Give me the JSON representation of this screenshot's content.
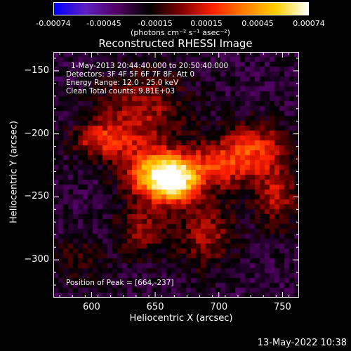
{
  "colorbar": {
    "ticks": [
      "-0.00074",
      "-0.00045",
      "-0.00015",
      "0.00015",
      "0.00045",
      "0.00074"
    ],
    "unit": "(photons cm⁻² s⁻¹ asec⁻²)"
  },
  "chart_data": {
    "type": "heatmap",
    "title": "Reconstructed RHESSI Image",
    "xlabel": "Heliocentric X (arcsec)",
    "ylabel": "Heliocentric Y (arcsec)",
    "xlim": [
      570,
      763
    ],
    "ylim": [
      -330,
      -135
    ],
    "xticks": [
      600,
      650,
      700,
      750
    ],
    "yticks": [
      -150,
      -200,
      -250,
      -300
    ],
    "xtick_labels": [
      "600",
      "650",
      "700",
      "750"
    ],
    "ytick_labels": [
      "−150",
      "−200",
      "−250",
      "−300"
    ],
    "color_range": [
      -0.00074,
      0.00074
    ],
    "peak": [
      664,
      -237
    ],
    "sources": [
      {
        "x": 664,
        "y": -237,
        "amp": 1.0,
        "sx": 14,
        "sy": 12
      },
      {
        "x": 645,
        "y": -230,
        "amp": 0.55,
        "sx": 16,
        "sy": 14
      },
      {
        "x": 610,
        "y": -205,
        "amp": 0.45,
        "sx": 18,
        "sy": 10
      },
      {
        "x": 700,
        "y": -225,
        "amp": 0.45,
        "sx": 22,
        "sy": 14
      },
      {
        "x": 640,
        "y": -180,
        "amp": 0.35,
        "sx": 25,
        "sy": 20
      },
      {
        "x": 730,
        "y": -210,
        "amp": 0.4,
        "sx": 18,
        "sy": 14
      },
      {
        "x": 690,
        "y": -280,
        "amp": 0.35,
        "sx": 16,
        "sy": 18
      },
      {
        "x": 745,
        "y": -250,
        "amp": 0.35,
        "sx": 12,
        "sy": 18
      },
      {
        "x": 640,
        "y": -275,
        "amp": 0.3,
        "sx": 14,
        "sy": 16
      },
      {
        "x": 590,
        "y": -300,
        "amp": 0.2,
        "sx": 14,
        "sy": 12
      }
    ],
    "colors": [
      "#0000ff",
      "#6020c0",
      "#500060",
      "#000000",
      "#800000",
      "#ff2000",
      "#ff8000",
      "#ffd000",
      "#ffffff"
    ]
  },
  "info": {
    "time_range": "1-May-2013 20:44:40.000 to 20:50:40.000",
    "detectors": "Detectors: 3F 4F 5F 6F 7F 8F, Att 0",
    "energy": "Energy Range: 12.0 - 25.0 keV",
    "clean": "Clean     Total counts: 9.81E+03",
    "peak": "Position of Peak = [664,-237]"
  },
  "timestamp": "13-May-2022 10:38"
}
